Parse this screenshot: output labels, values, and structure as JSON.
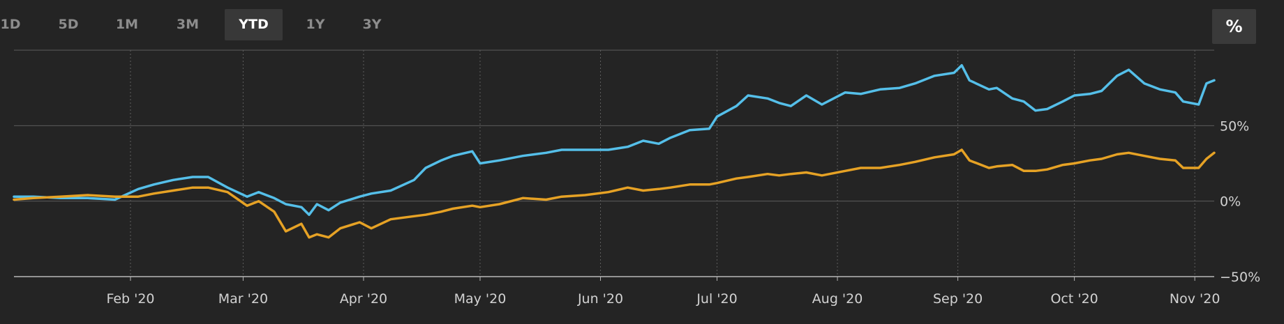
{
  "toolbar": {
    "ranges": [
      {
        "label": "1D",
        "active": false
      },
      {
        "label": "5D",
        "active": false
      },
      {
        "label": "1M",
        "active": false
      },
      {
        "label": "3M",
        "active": false
      },
      {
        "label": "YTD",
        "active": true
      },
      {
        "label": "1Y",
        "active": false
      },
      {
        "label": "3Y",
        "active": false
      }
    ],
    "percent_toggle_label": "%"
  },
  "chart_data": {
    "type": "line",
    "title": "",
    "xlabel": "",
    "ylabel": "",
    "x_type": "date",
    "x_range": [
      "2020-01-02",
      "2020-11-06"
    ],
    "x_ticks": [
      {
        "date": "2020-02-01",
        "label": "Feb '20"
      },
      {
        "date": "2020-03-01",
        "label": "Mar '20"
      },
      {
        "date": "2020-04-01",
        "label": "Apr '20"
      },
      {
        "date": "2020-05-01",
        "label": "May '20"
      },
      {
        "date": "2020-06-01",
        "label": "Jun '20"
      },
      {
        "date": "2020-07-01",
        "label": "Jul '20"
      },
      {
        "date": "2020-08-01",
        "label": "Aug '20"
      },
      {
        "date": "2020-09-01",
        "label": "Sep '20"
      },
      {
        "date": "2020-10-01",
        "label": "Oct '20"
      },
      {
        "date": "2020-11-01",
        "label": "Nov '20"
      }
    ],
    "y_unit": "%",
    "ylim": [
      -50,
      100
    ],
    "y_ticks": [
      {
        "value": 50,
        "label": "50%"
      },
      {
        "value": 0,
        "label": "0%"
      },
      {
        "value": -50,
        "label": "−50%"
      }
    ],
    "grid": true,
    "legend": "none",
    "series": [
      {
        "color": "#55bfe9",
        "points": [
          [
            "2020-01-02",
            3
          ],
          [
            "2020-01-07",
            3
          ],
          [
            "2020-01-14",
            2
          ],
          [
            "2020-01-21",
            2
          ],
          [
            "2020-01-28",
            1
          ],
          [
            "2020-02-03",
            8
          ],
          [
            "2020-02-07",
            11
          ],
          [
            "2020-02-12",
            14
          ],
          [
            "2020-02-17",
            16
          ],
          [
            "2020-02-21",
            16
          ],
          [
            "2020-02-26",
            9
          ],
          [
            "2020-03-02",
            3
          ],
          [
            "2020-03-05",
            6
          ],
          [
            "2020-03-09",
            2
          ],
          [
            "2020-03-12",
            -2
          ],
          [
            "2020-03-16",
            -4
          ],
          [
            "2020-03-18",
            -9
          ],
          [
            "2020-03-20",
            -2
          ],
          [
            "2020-03-23",
            -6
          ],
          [
            "2020-03-26",
            -1
          ],
          [
            "2020-03-31",
            3
          ],
          [
            "2020-04-03",
            5
          ],
          [
            "2020-04-08",
            7
          ],
          [
            "2020-04-14",
            14
          ],
          [
            "2020-04-17",
            22
          ],
          [
            "2020-04-21",
            27
          ],
          [
            "2020-04-24",
            30
          ],
          [
            "2020-04-29",
            33
          ],
          [
            "2020-05-01",
            25
          ],
          [
            "2020-05-06",
            27
          ],
          [
            "2020-05-12",
            30
          ],
          [
            "2020-05-18",
            32
          ],
          [
            "2020-05-22",
            34
          ],
          [
            "2020-05-28",
            34
          ],
          [
            "2020-06-03",
            34
          ],
          [
            "2020-06-08",
            36
          ],
          [
            "2020-06-12",
            40
          ],
          [
            "2020-06-16",
            38
          ],
          [
            "2020-06-19",
            42
          ],
          [
            "2020-06-24",
            47
          ],
          [
            "2020-06-29",
            48
          ],
          [
            "2020-07-01",
            56
          ],
          [
            "2020-07-06",
            63
          ],
          [
            "2020-07-09",
            70
          ],
          [
            "2020-07-14",
            68
          ],
          [
            "2020-07-17",
            65
          ],
          [
            "2020-07-20",
            63
          ],
          [
            "2020-07-24",
            70
          ],
          [
            "2020-07-28",
            64
          ],
          [
            "2020-08-03",
            72
          ],
          [
            "2020-08-07",
            71
          ],
          [
            "2020-08-12",
            74
          ],
          [
            "2020-08-17",
            75
          ],
          [
            "2020-08-21",
            78
          ],
          [
            "2020-08-26",
            83
          ],
          [
            "2020-08-31",
            85
          ],
          [
            "2020-09-02",
            90
          ],
          [
            "2020-09-04",
            80
          ],
          [
            "2020-09-09",
            74
          ],
          [
            "2020-09-11",
            75
          ],
          [
            "2020-09-15",
            68
          ],
          [
            "2020-09-18",
            66
          ],
          [
            "2020-09-21",
            60
          ],
          [
            "2020-09-24",
            61
          ],
          [
            "2020-09-28",
            66
          ],
          [
            "2020-10-01",
            70
          ],
          [
            "2020-10-05",
            71
          ],
          [
            "2020-10-08",
            73
          ],
          [
            "2020-10-12",
            83
          ],
          [
            "2020-10-15",
            87
          ],
          [
            "2020-10-19",
            78
          ],
          [
            "2020-10-23",
            74
          ],
          [
            "2020-10-27",
            72
          ],
          [
            "2020-10-29",
            66
          ],
          [
            "2020-11-02",
            64
          ],
          [
            "2020-11-04",
            78
          ],
          [
            "2020-11-06",
            80
          ]
        ]
      },
      {
        "color": "#e6a225",
        "points": [
          [
            "2020-01-02",
            1
          ],
          [
            "2020-01-07",
            2
          ],
          [
            "2020-01-14",
            3
          ],
          [
            "2020-01-21",
            4
          ],
          [
            "2020-01-28",
            3
          ],
          [
            "2020-02-03",
            3
          ],
          [
            "2020-02-07",
            5
          ],
          [
            "2020-02-12",
            7
          ],
          [
            "2020-02-17",
            9
          ],
          [
            "2020-02-21",
            9
          ],
          [
            "2020-02-26",
            6
          ],
          [
            "2020-03-02",
            -3
          ],
          [
            "2020-03-05",
            0
          ],
          [
            "2020-03-09",
            -7
          ],
          [
            "2020-03-12",
            -20
          ],
          [
            "2020-03-16",
            -15
          ],
          [
            "2020-03-18",
            -24
          ],
          [
            "2020-03-20",
            -22
          ],
          [
            "2020-03-23",
            -24
          ],
          [
            "2020-03-26",
            -18
          ],
          [
            "2020-03-31",
            -14
          ],
          [
            "2020-04-03",
            -18
          ],
          [
            "2020-04-08",
            -12
          ],
          [
            "2020-04-14",
            -10
          ],
          [
            "2020-04-17",
            -9
          ],
          [
            "2020-04-21",
            -7
          ],
          [
            "2020-04-24",
            -5
          ],
          [
            "2020-04-29",
            -3
          ],
          [
            "2020-05-01",
            -4
          ],
          [
            "2020-05-06",
            -2
          ],
          [
            "2020-05-12",
            2
          ],
          [
            "2020-05-18",
            1
          ],
          [
            "2020-05-22",
            3
          ],
          [
            "2020-05-28",
            4
          ],
          [
            "2020-06-03",
            6
          ],
          [
            "2020-06-08",
            9
          ],
          [
            "2020-06-12",
            7
          ],
          [
            "2020-06-16",
            8
          ],
          [
            "2020-06-19",
            9
          ],
          [
            "2020-06-24",
            11
          ],
          [
            "2020-06-29",
            11
          ],
          [
            "2020-07-01",
            12
          ],
          [
            "2020-07-06",
            15
          ],
          [
            "2020-07-09",
            16
          ],
          [
            "2020-07-14",
            18
          ],
          [
            "2020-07-17",
            17
          ],
          [
            "2020-07-20",
            18
          ],
          [
            "2020-07-24",
            19
          ],
          [
            "2020-07-28",
            17
          ],
          [
            "2020-08-03",
            20
          ],
          [
            "2020-08-07",
            22
          ],
          [
            "2020-08-12",
            22
          ],
          [
            "2020-08-17",
            24
          ],
          [
            "2020-08-21",
            26
          ],
          [
            "2020-08-26",
            29
          ],
          [
            "2020-08-31",
            31
          ],
          [
            "2020-09-02",
            34
          ],
          [
            "2020-09-04",
            27
          ],
          [
            "2020-09-09",
            22
          ],
          [
            "2020-09-11",
            23
          ],
          [
            "2020-09-15",
            24
          ],
          [
            "2020-09-18",
            20
          ],
          [
            "2020-09-21",
            20
          ],
          [
            "2020-09-24",
            21
          ],
          [
            "2020-09-28",
            24
          ],
          [
            "2020-10-01",
            25
          ],
          [
            "2020-10-05",
            27
          ],
          [
            "2020-10-08",
            28
          ],
          [
            "2020-10-12",
            31
          ],
          [
            "2020-10-15",
            32
          ],
          [
            "2020-10-19",
            30
          ],
          [
            "2020-10-23",
            28
          ],
          [
            "2020-10-27",
            27
          ],
          [
            "2020-10-29",
            22
          ],
          [
            "2020-11-02",
            22
          ],
          [
            "2020-11-04",
            28
          ],
          [
            "2020-11-06",
            32
          ]
        ]
      }
    ]
  }
}
